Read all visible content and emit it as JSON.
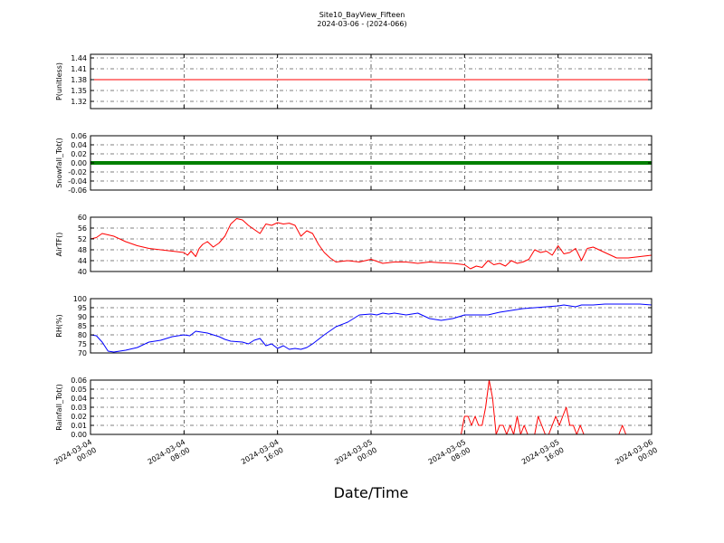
{
  "title": "Site10_BayView_Fifteen",
  "subtitle": "2024-03-06 - (2024-066)",
  "xlabel": "Date/Time",
  "x_ticks": [
    {
      "v": 0,
      "l1": "2024-03-04",
      "l2": "00:00"
    },
    {
      "v": 8,
      "l1": "2024-03-04",
      "l2": "08:00"
    },
    {
      "v": 16,
      "l1": "2024-03-04",
      "l2": "16:00"
    },
    {
      "v": 24,
      "l1": "2024-03-05",
      "l2": "00:00"
    },
    {
      "v": 32,
      "l1": "2024-03-05",
      "l2": "08:00"
    },
    {
      "v": 40,
      "l1": "2024-03-05",
      "l2": "16:00"
    },
    {
      "v": 48,
      "l1": "2024-03-06",
      "l2": "00:00"
    }
  ],
  "chart_data": [
    {
      "type": "line",
      "ylabel": "P(unitless)",
      "ylim": [
        1.3,
        1.45
      ],
      "yticks": [
        1.32,
        1.35,
        1.38,
        1.41,
        1.44
      ],
      "yfmt": 2,
      "color": "#ff0000",
      "grid": true,
      "x": [
        0,
        48
      ],
      "y": [
        1.38,
        1.38
      ]
    },
    {
      "type": "line",
      "ylabel": "Snowfall_Tot()",
      "ylim": [
        -0.06,
        0.06
      ],
      "yticks": [
        -0.06,
        -0.04,
        -0.02,
        0.0,
        0.02,
        0.04,
        0.06
      ],
      "yfmt": 2,
      "color": "#008000",
      "thick": true,
      "grid": true,
      "x": [
        0,
        48
      ],
      "y": [
        0,
        0
      ]
    },
    {
      "type": "line",
      "ylabel": "AirTF()",
      "ylim": [
        40,
        60
      ],
      "yticks": [
        40,
        44,
        48,
        52,
        56,
        60
      ],
      "yfmt": 0,
      "color": "#ff0000",
      "grid": true,
      "x": [
        0,
        0.5,
        1,
        1.5,
        2,
        3,
        4,
        5,
        6,
        7,
        8,
        8.3,
        8.6,
        9,
        9.3,
        9.6,
        10,
        10.5,
        11,
        11.5,
        12,
        12.5,
        13,
        13.5,
        14,
        14.5,
        15,
        15.5,
        16,
        16.5,
        17,
        17.5,
        18,
        18.5,
        19,
        19.5,
        20,
        20.5,
        21,
        22,
        23,
        24,
        25,
        26,
        27,
        28,
        29,
        30,
        31,
        32,
        32.5,
        33,
        33.5,
        34,
        34.5,
        35,
        35.5,
        36,
        36.5,
        37,
        37.5,
        38,
        38.5,
        39,
        39.5,
        40,
        40.5,
        41,
        41.5,
        42,
        42.5,
        43,
        43.5,
        44,
        45,
        46,
        47,
        48
      ],
      "y": [
        52,
        52.5,
        54,
        53.5,
        53,
        51,
        49.5,
        48.5,
        48,
        47.5,
        47,
        46,
        47.5,
        45.5,
        48.5,
        50,
        51,
        49,
        50.5,
        53,
        57.5,
        59.5,
        59,
        57,
        55.5,
        54,
        57.5,
        57,
        58,
        57.5,
        57.8,
        57,
        53,
        55,
        54,
        50,
        47,
        45,
        43.5,
        44,
        43.5,
        44.5,
        43,
        43.5,
        43.5,
        43,
        43.5,
        43.2,
        43,
        42.5,
        41,
        42,
        41.5,
        44,
        42.5,
        43,
        42,
        44,
        43,
        43.5,
        44.5,
        48,
        47,
        47.5,
        46,
        49.5,
        46.5,
        47,
        48.5,
        44,
        48.5,
        49,
        48,
        47,
        45,
        45,
        45.5,
        46
      ]
    },
    {
      "type": "line",
      "ylabel": "RH(%)",
      "ylim": [
        70,
        100
      ],
      "yticks": [
        70,
        75,
        80,
        85,
        90,
        95,
        100
      ],
      "yfmt": 0,
      "color": "#0000ff",
      "grid": true,
      "x": [
        0,
        0.5,
        1,
        1.5,
        2,
        2.5,
        3,
        4,
        5,
        6,
        7,
        8,
        8.5,
        9,
        10,
        10.5,
        11,
        11.5,
        12,
        13,
        13.5,
        14,
        14.5,
        15,
        15.5,
        16,
        16.5,
        17,
        17.5,
        18,
        18.5,
        19,
        20,
        21,
        22,
        23,
        24,
        24.5,
        25,
        25.5,
        26,
        27,
        28,
        29,
        30,
        31,
        32,
        33,
        34,
        35,
        36,
        37,
        38,
        39,
        40,
        40.5,
        41,
        41.5,
        42,
        43,
        44,
        45,
        46,
        47,
        48
      ],
      "y": [
        80,
        79.5,
        76,
        71,
        70.5,
        71,
        71.5,
        73,
        76,
        77,
        79,
        80,
        79.5,
        82,
        81,
        80,
        79,
        77.5,
        76.5,
        76,
        75,
        77,
        78,
        74,
        75,
        72.5,
        74,
        72,
        72.5,
        72,
        73,
        75,
        80,
        84.5,
        87,
        91,
        91.5,
        91,
        92,
        91.5,
        92,
        91,
        92,
        89,
        88,
        89,
        91,
        91,
        91,
        92.5,
        93.5,
        94.5,
        95,
        95.5,
        96,
        96.5,
        96,
        95.5,
        96.5,
        96.5,
        97,
        97,
        97,
        97,
        96.5
      ]
    },
    {
      "type": "line",
      "ylabel": "Rainfall_Tot()",
      "ylim": [
        0,
        0.06
      ],
      "yticks": [
        0.0,
        0.01,
        0.02,
        0.03,
        0.04,
        0.05,
        0.06
      ],
      "yfmt": 2,
      "color": "#ff0000",
      "grid": true,
      "x": [
        0,
        31.7,
        32,
        32.3,
        32.6,
        32.9,
        33.2,
        33.5,
        33.8,
        34.1,
        34.4,
        34.7,
        35,
        35.3,
        35.6,
        35.9,
        36.2,
        36.5,
        36.8,
        37.1,
        37.4,
        37.7,
        38,
        38.3,
        38.6,
        38.9,
        39.2,
        39.5,
        39.8,
        40.1,
        40.4,
        40.7,
        41,
        41.3,
        41.6,
        41.9,
        42.2,
        42.5,
        42.8,
        43.1,
        43.4,
        43.7,
        44,
        44.3,
        44.6,
        44.9,
        45.2,
        45.5,
        45.8,
        46.1,
        46.4,
        46.7,
        47,
        47.3,
        47.6,
        47.9,
        48
      ],
      "y": [
        0,
        0,
        0.02,
        0.02,
        0.01,
        0.02,
        0.01,
        0.01,
        0.03,
        0.06,
        0.04,
        0,
        0.01,
        0.01,
        0,
        0.01,
        0,
        0.02,
        0,
        0.01,
        0,
        0,
        0,
        0.02,
        0.01,
        0,
        0,
        0.01,
        0.02,
        0.01,
        0.02,
        0.03,
        0.01,
        0.01,
        0,
        0.01,
        0,
        0,
        0,
        0,
        0,
        0,
        0,
        0,
        0,
        0,
        0,
        0.01,
        0,
        0,
        0,
        0,
        0,
        0,
        0,
        0,
        0
      ]
    }
  ]
}
